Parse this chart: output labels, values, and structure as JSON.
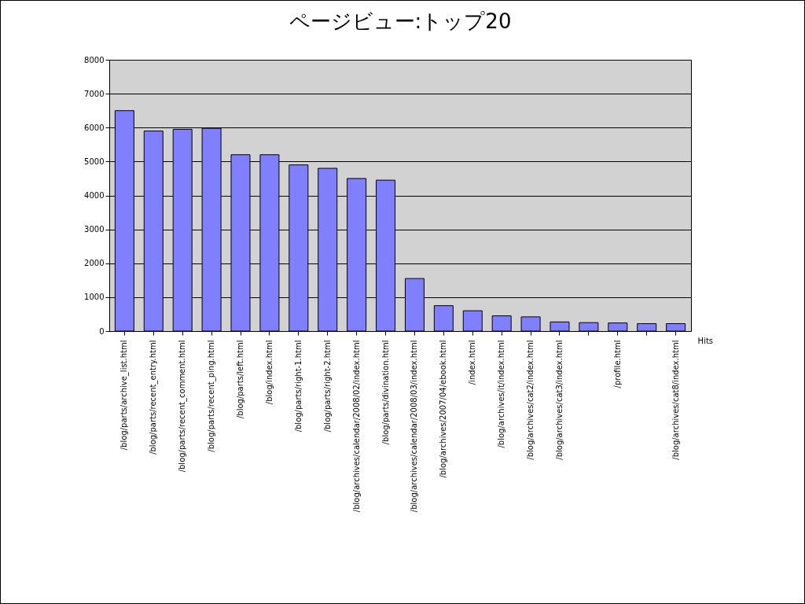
{
  "chart_data": {
    "type": "bar",
    "title": "ページビュー:トップ20",
    "categories": [
      "/blog/parts/archive_list.html",
      "/blog/parts/recent_entry.html",
      "/blog/parts/recent_comment.html",
      "/blog/parts/recent_ping.html",
      "/blog/parts/left.html",
      "/blog/index.html",
      "/blog/parts/right-1.html",
      "/blog/parts/right-2.html",
      "/blog/archives/calendar/2008/02/index.html",
      "/blog/parts/divination.html",
      "/blog/archives/calendar/2008/03/index.html",
      "/blog/archives/2007/04/ebook.html",
      "/index.html",
      "/blog/archives/it/index.html",
      "/blog/archives/cat2/index.html",
      "/blog/archives/cat3/index.html",
      null,
      "/profile.html",
      null,
      "/blog/archives/cat8/index.html"
    ],
    "series": [
      {
        "name": "Hits",
        "color": "#8080ff",
        "values": [
          6500,
          5900,
          5950,
          5980,
          5200,
          5200,
          4900,
          4800,
          4500,
          4450,
          1550,
          750,
          600,
          450,
          420,
          270,
          250,
          240,
          220,
          220
        ]
      }
    ],
    "ylim": [
      0,
      8000
    ],
    "yticks": [
      0,
      1000,
      2000,
      3000,
      4000,
      5000,
      6000,
      7000,
      8000
    ],
    "grid": "y"
  }
}
